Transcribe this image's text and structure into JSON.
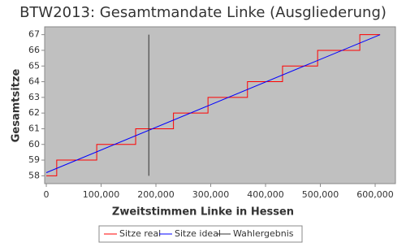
{
  "chart_data": {
    "type": "line",
    "title": "BTW2013: Gesamtmandate Linke (Ausgliederung)",
    "x_label": "Zweitstimmen Linke in Hessen",
    "y_label": "Gesamtsitze",
    "xlim": [
      -3000,
      637000
    ],
    "xticks": [
      0,
      {
        "value": 100000,
        "label": "100,000"
      },
      {
        "value": 200000,
        "label": "200,000"
      },
      {
        "value": 300000,
        "label": "300,000"
      },
      {
        "value": 400000,
        "label": "400,000"
      },
      {
        "value": 500000,
        "label": "500,000"
      },
      {
        "value": 600000,
        "label": "600,000"
      }
    ],
    "ylim": [
      57.5,
      67.5
    ],
    "yticks": [
      58,
      59,
      60,
      61,
      62,
      63,
      64,
      65,
      66,
      67
    ],
    "grid": false,
    "legend": "bottom",
    "series": [
      {
        "name": "Sitze real",
        "color": "#ff0000",
        "x": [
          0,
          19000,
          19000,
          92000,
          92000,
          163000,
          163000,
          232000,
          232000,
          295000,
          295000,
          367000,
          367000,
          431000,
          431000,
          495000,
          495000,
          572000,
          572000,
          609000
        ],
        "values": [
          58,
          58,
          59,
          59,
          60,
          60,
          61,
          61,
          62,
          62,
          63,
          63,
          64,
          64,
          65,
          65,
          66,
          66,
          67,
          67
        ]
      },
      {
        "name": "Sitze ideal",
        "color": "#0000ff",
        "x": [
          0,
          609000
        ],
        "values": [
          58.2,
          67
        ]
      },
      {
        "name": "Wahlergebnis",
        "color": "#333333",
        "x": [
          187000,
          187000
        ],
        "values": [
          58,
          67
        ]
      }
    ]
  }
}
